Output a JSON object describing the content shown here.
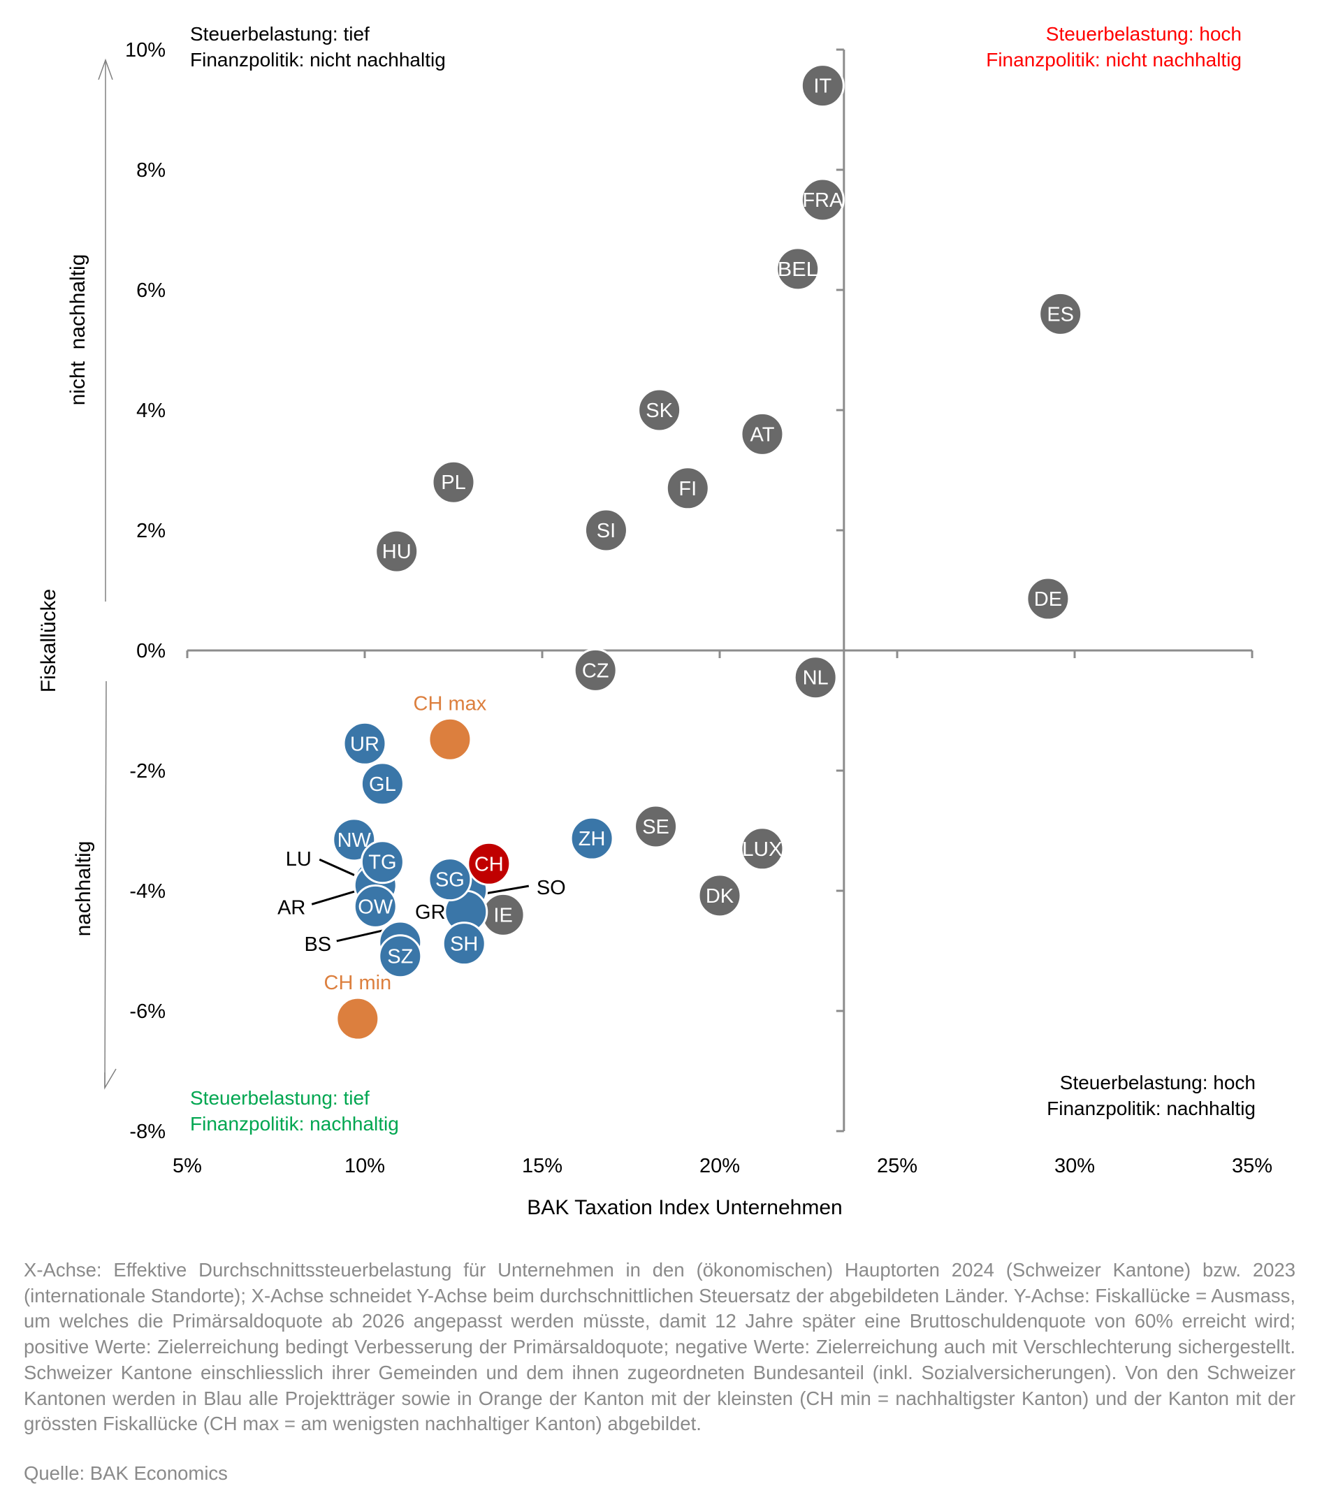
{
  "quadrants": {
    "top_left": {
      "line1": "Steuerbelastung: tief",
      "line2": "Finanzpolitik: nicht nachhaltig",
      "color": "#000000"
    },
    "top_right": {
      "line1": "Steuerbelastung: hoch",
      "line2": "Finanzpolitik: nicht nachhaltig",
      "color": "#ff0000"
    },
    "bottom_left": {
      "line1": "Steuerbelastung: tief",
      "line2": "Finanzpolitik: nachhaltig",
      "color": "#00a650"
    },
    "bottom_right": {
      "line1": "Steuerbelastung: hoch",
      "line2": "Finanzpolitik: nachhaltig",
      "color": "#000000"
    }
  },
  "y_side_labels": {
    "upper": "nicht  nachhaltig",
    "middle": "Fiskallücke",
    "lower": "nachhaltig"
  },
  "footnote": "X-Achse: Effektive Durchschnittssteuerbelastung für Unternehmen in den (ökonomischen) Hauptorten 2024 (Schweizer Kantone) bzw. 2023 (internationale Standorte); X-Achse schneidet Y-Achse beim durchschnittlichen Steuersatz der abgebildeten Länder. Y-Achse: Fiskallücke = Ausmass, um welches die Primärsaldoquote ab 2026 angepasst werden müsste, damit 12 Jahre später eine Bruttoschuldenquote von 60% erreicht wird; positive Werte: Zielerreichung bedingt Verbesserung der Primärsaldoquote; negative Werte: Zielerreichung auch mit Verschlechterung sichergestellt. Schweizer Kantone einschliesslich ihrer Gemeinden und dem ihnen zugeordneten Bundesanteil (inkl. Sozialversicherungen). Von den Schweizer Kantonen werden in Blau alle Projektträger sowie in Orange der Kanton mit der kleinsten (CH min = nachhaltigster Kanton) und der Kanton mit der grössten Fiskallücke (CH max = am wenigsten nachhaltiger Kanton) abgebildet.",
  "source": "Quelle: BAK Economics",
  "chart_data": {
    "type": "scatter",
    "title": "",
    "xlabel": "BAK Taxation Index Unternehmen",
    "ylabel": "Fiskallücke",
    "xlim": [
      5,
      35
    ],
    "ylim": [
      -8,
      10
    ],
    "x_ticks": [
      "5%",
      "10%",
      "15%",
      "20%",
      "25%",
      "30%",
      "35%"
    ],
    "x_tick_values": [
      5,
      10,
      15,
      20,
      25,
      30,
      35
    ],
    "y_ticks": [
      "10%",
      "8%",
      "6%",
      "4%",
      "2%",
      "0%",
      "-2%",
      "-4%",
      "-6%",
      "-8%"
    ],
    "y_tick_values": [
      10,
      8,
      6,
      4,
      2,
      0,
      -2,
      -4,
      -6,
      -8
    ],
    "x_axis_crosses_y_at": 23.5,
    "y_axis_crosses_x_at": 0,
    "grid": false,
    "colors": {
      "international": "#696969",
      "canton": "#3a76a8",
      "switzerland": "#c00000",
      "ch_extreme": "#dc7f3e"
    },
    "points": [
      {
        "label": "IT",
        "x": 22.9,
        "y": 9.4,
        "group": "international"
      },
      {
        "label": "FRA",
        "x": 22.9,
        "y": 7.5,
        "group": "international"
      },
      {
        "label": "BEL",
        "x": 22.2,
        "y": 6.35,
        "group": "international"
      },
      {
        "label": "ES",
        "x": 29.6,
        "y": 5.6,
        "group": "international"
      },
      {
        "label": "SK",
        "x": 18.3,
        "y": 4.0,
        "group": "international"
      },
      {
        "label": "AT",
        "x": 21.2,
        "y": 3.6,
        "group": "international"
      },
      {
        "label": "PL",
        "x": 12.5,
        "y": 2.8,
        "group": "international"
      },
      {
        "label": "FI",
        "x": 19.1,
        "y": 2.7,
        "group": "international"
      },
      {
        "label": "SI",
        "x": 16.8,
        "y": 2.0,
        "group": "international"
      },
      {
        "label": "HU",
        "x": 10.9,
        "y": 1.65,
        "group": "international"
      },
      {
        "label": "DE",
        "x": 29.25,
        "y": 0.86,
        "group": "international"
      },
      {
        "label": "CZ",
        "x": 16.5,
        "y": -0.33,
        "group": "international"
      },
      {
        "label": "NL",
        "x": 22.7,
        "y": -0.45,
        "group": "international"
      },
      {
        "label": "SE",
        "x": 18.2,
        "y": -2.93,
        "group": "international"
      },
      {
        "label": "LUX",
        "x": 21.2,
        "y": -3.3,
        "group": "international"
      },
      {
        "label": "DK",
        "x": 20.0,
        "y": -4.08,
        "group": "international"
      },
      {
        "label": "IE",
        "x": 13.9,
        "y": -4.4,
        "group": "international"
      },
      {
        "label": "LU",
        "x": 10.3,
        "y": -3.84,
        "group": "canton",
        "callout": true
      },
      {
        "label": "AR",
        "x": 10.3,
        "y": -3.91,
        "group": "canton",
        "callout": true
      },
      {
        "label": "SO",
        "x": 12.85,
        "y": -3.99,
        "group": "canton",
        "callout": true
      },
      {
        "label": "GR",
        "x": 12.85,
        "y": -4.35,
        "group": "canton",
        "callout": true
      },
      {
        "label": "BS",
        "x": 11.0,
        "y": -4.86,
        "group": "canton",
        "callout": true
      },
      {
        "label": "UR",
        "x": 10.0,
        "y": -1.55,
        "group": "canton"
      },
      {
        "label": "GL",
        "x": 10.5,
        "y": -2.22,
        "group": "canton"
      },
      {
        "label": "NW",
        "x": 9.7,
        "y": -3.15,
        "group": "canton"
      },
      {
        "label": "TG",
        "x": 10.5,
        "y": -3.52,
        "group": "canton"
      },
      {
        "label": "OW",
        "x": 10.3,
        "y": -4.26,
        "group": "canton"
      },
      {
        "label": "SZ",
        "x": 11.0,
        "y": -5.09,
        "group": "canton"
      },
      {
        "label": "SG",
        "x": 12.4,
        "y": -3.81,
        "group": "canton"
      },
      {
        "label": "SH",
        "x": 12.8,
        "y": -4.88,
        "group": "canton"
      },
      {
        "label": "ZH",
        "x": 16.4,
        "y": -3.13,
        "group": "canton"
      },
      {
        "label": "CH",
        "x": 13.5,
        "y": -3.55,
        "group": "switzerland"
      },
      {
        "label": "CH max",
        "x": 12.4,
        "y": -1.48,
        "group": "ch_extreme"
      },
      {
        "label": "CH min",
        "x": 9.8,
        "y": -6.13,
        "group": "ch_extreme"
      }
    ]
  }
}
